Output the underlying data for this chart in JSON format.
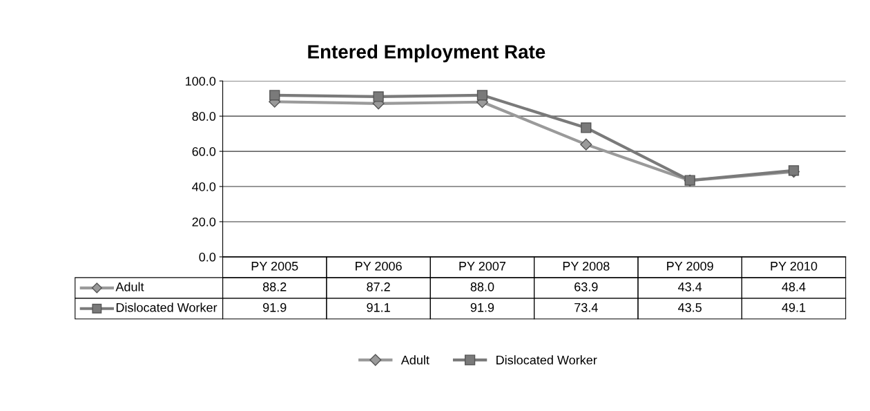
{
  "chart_data": {
    "type": "line",
    "title": "Entered Employment Rate",
    "categories": [
      "PY 2005",
      "PY 2006",
      "PY 2007",
      "PY 2008",
      "PY 2009",
      "PY 2010"
    ],
    "series": [
      {
        "name": "Adult",
        "color": "#9a9a9a",
        "marker": "diamond",
        "values": [
          88.2,
          87.2,
          88.0,
          63.9,
          43.4,
          48.4
        ],
        "value_labels": [
          "88.2",
          "87.2",
          "88.0",
          "63.9",
          "43.4",
          "48.4"
        ]
      },
      {
        "name": "Dislocated Worker",
        "color": "#7a7a7a",
        "marker": "square",
        "values": [
          91.9,
          91.1,
          91.9,
          73.4,
          43.5,
          49.1
        ],
        "value_labels": [
          "91.9",
          "91.1",
          "91.9",
          "73.4",
          "43.5",
          "49.1"
        ]
      }
    ],
    "ylim": [
      0,
      100
    ],
    "yticks": [
      {
        "value": 0,
        "label": "0.0"
      },
      {
        "value": 20,
        "label": "20.0"
      },
      {
        "value": 40,
        "label": "40.0"
      },
      {
        "value": 60,
        "label": "60.0"
      },
      {
        "value": 80,
        "label": "80.0"
      },
      {
        "value": 100,
        "label": "100.0"
      }
    ],
    "grid": "y",
    "legend": "bottom",
    "line_style": "solid"
  }
}
